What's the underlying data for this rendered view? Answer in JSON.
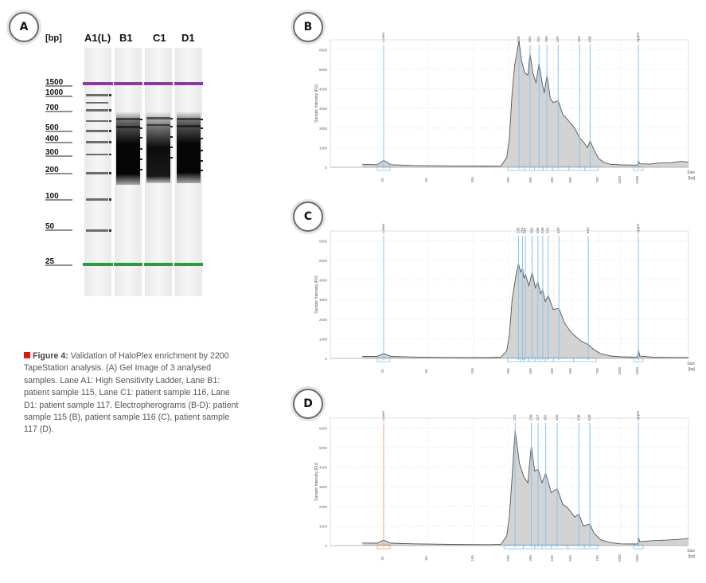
{
  "panel_a": {
    "badge": "A",
    "unit_label": "[bp]",
    "lanes": [
      "A1(L)",
      "B1",
      "C1",
      "D1"
    ],
    "ladder_sizes": [
      "1500",
      "1000",
      "700",
      "500",
      "400",
      "300",
      "200",
      "100",
      "50",
      "25"
    ]
  },
  "caption": {
    "figure_label": "Figure 4:",
    "text": " Validation of HaloPlex enrichment by 2200 TapeStation analysis. (A) Gel Image of 3 analysed samples. Lane A1: High Sensitivity Ladder, Lane B1: patient sample 115, Lane C1: patient sample 116, Lane D1: patient sample 117. Electropherograms (B-D): patient sample 115 (B), patient sample 116 (C), patient sample 117 (D)."
  },
  "colors": {
    "upper_marker": "#8b3a9e",
    "lower_marker": "#2e9a3e",
    "peak_line": "#8cc2ea",
    "lower_highlight": "#f0a080",
    "trace_fill": "#d3d3d3",
    "trace_line": "#555555",
    "caption_marker": "#e3151a"
  },
  "chart_data": [
    {
      "panel": "B",
      "type": "area",
      "ylabel": "Sample Intensity [FU]",
      "xlabel": "Size [bp]",
      "yticks": [
        "0",
        "1000",
        "2000",
        "3000",
        "4000",
        "5000",
        "6000"
      ],
      "xticks": [
        "25",
        "50",
        "100",
        "200",
        "300",
        "400",
        "500",
        "700",
        "1000",
        "1500"
      ],
      "ylim": [
        0,
        6500
      ],
      "marker_labels": [
        "Lower",
        "Upper"
      ],
      "peak_labels": [
        "238",
        "291",
        "331",
        "368",
        "425",
        "553",
        "630"
      ],
      "lower_marker_color": "blue",
      "grid": true,
      "trace": [
        [
          15,
          150
        ],
        [
          22,
          130
        ],
        [
          25,
          350
        ],
        [
          28,
          130
        ],
        [
          40,
          90
        ],
        [
          70,
          70
        ],
        [
          130,
          60
        ],
        [
          170,
          70
        ],
        [
          190,
          500
        ],
        [
          200,
          1500
        ],
        [
          210,
          3800
        ],
        [
          220,
          5200
        ],
        [
          230,
          5900
        ],
        [
          238,
          6450
        ],
        [
          250,
          5400
        ],
        [
          265,
          4800
        ],
        [
          280,
          4700
        ],
        [
          291,
          5800
        ],
        [
          305,
          4800
        ],
        [
          318,
          4300
        ],
        [
          331,
          5300
        ],
        [
          345,
          4300
        ],
        [
          355,
          3800
        ],
        [
          368,
          4700
        ],
        [
          385,
          3500
        ],
        [
          400,
          3300
        ],
        [
          425,
          3400
        ],
        [
          450,
          2700
        ],
        [
          480,
          2400
        ],
        [
          520,
          2000
        ],
        [
          553,
          1500
        ],
        [
          580,
          1300
        ],
        [
          610,
          1000
        ],
        [
          630,
          1350
        ],
        [
          660,
          900
        ],
        [
          700,
          450
        ],
        [
          760,
          250
        ],
        [
          850,
          150
        ],
        [
          1000,
          120
        ],
        [
          1350,
          110
        ],
        [
          1480,
          120
        ],
        [
          1500,
          350
        ],
        [
          1520,
          180
        ],
        [
          1650,
          160
        ],
        [
          1800,
          220
        ],
        [
          1950,
          230
        ],
        [
          2100,
          300
        ],
        [
          2200,
          260
        ]
      ]
    },
    {
      "panel": "C",
      "type": "area",
      "ylabel": "Sample Intensity [FU]",
      "xlabel": "Size [bp]",
      "yticks": [
        "0",
        "1000",
        "2000",
        "3000",
        "4000",
        "5000",
        "6000"
      ],
      "xticks": [
        "25",
        "50",
        "100",
        "200",
        "300",
        "400",
        "500",
        "700",
        "1000",
        "1500"
      ],
      "ylim": [
        0,
        6500
      ],
      "marker_labels": [
        "Lower",
        "Upper"
      ],
      "peak_labels": [
        "236",
        "254",
        "267",
        "302",
        "326",
        "348",
        "374",
        "429",
        "616"
      ],
      "lower_marker_color": "blue",
      "grid": true,
      "trace": [
        [
          15,
          100
        ],
        [
          22,
          100
        ],
        [
          25,
          250
        ],
        [
          28,
          100
        ],
        [
          40,
          70
        ],
        [
          70,
          50
        ],
        [
          130,
          40
        ],
        [
          170,
          60
        ],
        [
          190,
          400
        ],
        [
          200,
          1200
        ],
        [
          210,
          3000
        ],
        [
          225,
          4200
        ],
        [
          236,
          4850
        ],
        [
          245,
          4400
        ],
        [
          254,
          4600
        ],
        [
          260,
          4100
        ],
        [
          267,
          4300
        ],
        [
          285,
          3700
        ],
        [
          302,
          4400
        ],
        [
          315,
          3600
        ],
        [
          326,
          3900
        ],
        [
          338,
          3300
        ],
        [
          348,
          3500
        ],
        [
          360,
          2900
        ],
        [
          374,
          3200
        ],
        [
          400,
          2500
        ],
        [
          429,
          2550
        ],
        [
          460,
          1800
        ],
        [
          500,
          1300
        ],
        [
          560,
          900
        ],
        [
          616,
          700
        ],
        [
          660,
          450
        ],
        [
          720,
          250
        ],
        [
          850,
          120
        ],
        [
          1000,
          80
        ],
        [
          1380,
          60
        ],
        [
          1480,
          80
        ],
        [
          1500,
          450
        ],
        [
          1520,
          120
        ],
        [
          1700,
          60
        ],
        [
          2000,
          50
        ],
        [
          2200,
          50
        ]
      ]
    },
    {
      "panel": "D",
      "type": "area",
      "ylabel": "Sample Intensity [FU]",
      "xlabel": "Size [bp]",
      "yticks": [
        "0",
        "1000",
        "2000",
        "3000",
        "4000",
        "5000",
        "6000"
      ],
      "xticks": [
        "25",
        "50",
        "100",
        "200",
        "300",
        "400",
        "500",
        "700",
        "1000",
        "1500"
      ],
      "ylim": [
        0,
        6500
      ],
      "marker_labels": [
        "Lower",
        "Upper"
      ],
      "peak_labels": [
        "222",
        "298",
        "327",
        "362",
        "420",
        "548",
        "628"
      ],
      "lower_marker_color": "orange",
      "grid": true,
      "trace": [
        [
          15,
          130
        ],
        [
          22,
          120
        ],
        [
          25,
          280
        ],
        [
          28,
          120
        ],
        [
          40,
          90
        ],
        [
          70,
          60
        ],
        [
          130,
          50
        ],
        [
          170,
          60
        ],
        [
          190,
          500
        ],
        [
          200,
          1500
        ],
        [
          210,
          3500
        ],
        [
          222,
          5900
        ],
        [
          240,
          4200
        ],
        [
          260,
          3500
        ],
        [
          280,
          3200
        ],
        [
          298,
          5100
        ],
        [
          312,
          3800
        ],
        [
          327,
          3900
        ],
        [
          345,
          3200
        ],
        [
          362,
          3700
        ],
        [
          390,
          2700
        ],
        [
          420,
          2900
        ],
        [
          450,
          2100
        ],
        [
          480,
          1900
        ],
        [
          520,
          1450
        ],
        [
          548,
          1600
        ],
        [
          580,
          1000
        ],
        [
          628,
          1100
        ],
        [
          660,
          650
        ],
        [
          720,
          300
        ],
        [
          850,
          150
        ],
        [
          1000,
          90
        ],
        [
          1380,
          80
        ],
        [
          1480,
          90
        ],
        [
          1500,
          450
        ],
        [
          1520,
          200
        ],
        [
          1700,
          250
        ],
        [
          1900,
          280
        ],
        [
          2100,
          330
        ],
        [
          2200,
          360
        ]
      ]
    }
  ]
}
